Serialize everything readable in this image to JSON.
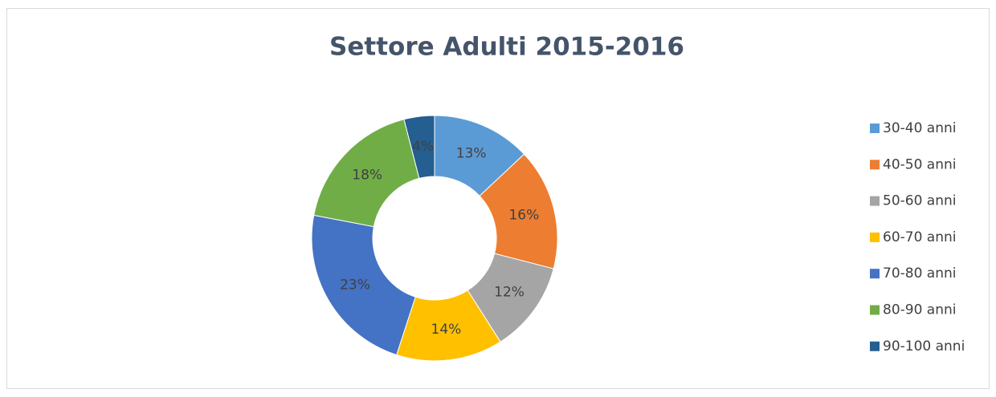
{
  "chart_data": {
    "type": "pie",
    "donut": true,
    "title": "Settore Adulti 2015-2016",
    "categories": [
      "30-40 anni",
      "40-50 anni",
      "50-60 anni",
      "60-70 anni",
      "70-80 anni",
      "80-90 anni",
      "90-100 anni"
    ],
    "values": [
      13,
      16,
      12,
      14,
      23,
      18,
      4
    ],
    "value_labels": [
      "13%",
      "16%",
      "12%",
      "14%",
      "23%",
      "18%",
      "4%"
    ],
    "colors": [
      "#5b9bd5",
      "#ed7d31",
      "#a5a5a5",
      "#ffc000",
      "#4472c4",
      "#70ad47",
      "#255e91"
    ],
    "legend": "right"
  }
}
